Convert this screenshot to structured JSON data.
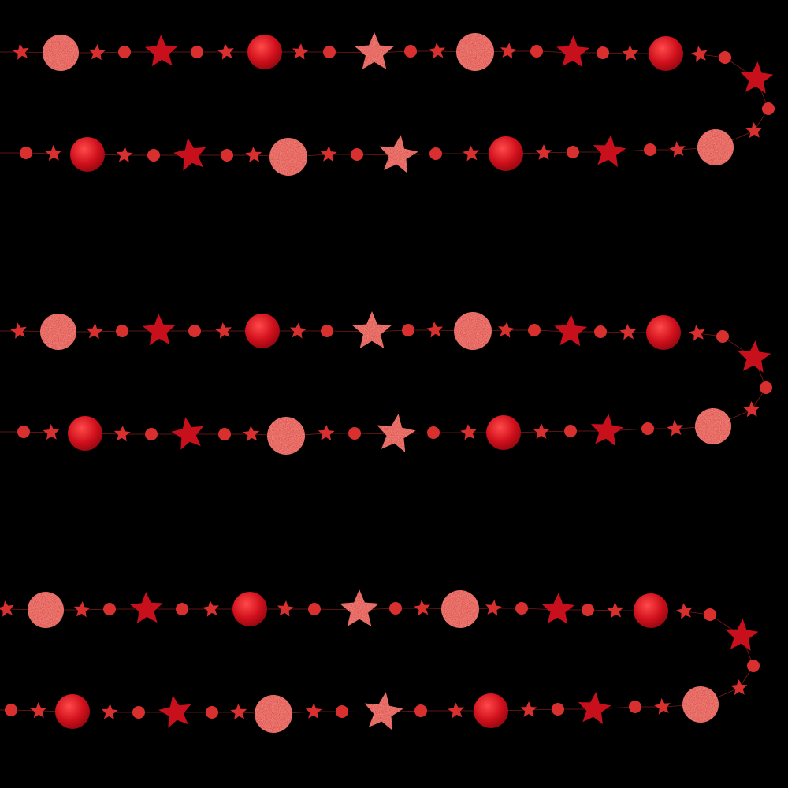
{
  "background_color": "#000000",
  "colors": {
    "shiny_red": "#c8101c",
    "glitter_red": "#e0443c",
    "matte_red": "#d8302e",
    "thread": "#7a1a1a"
  },
  "garland_count": 3
}
